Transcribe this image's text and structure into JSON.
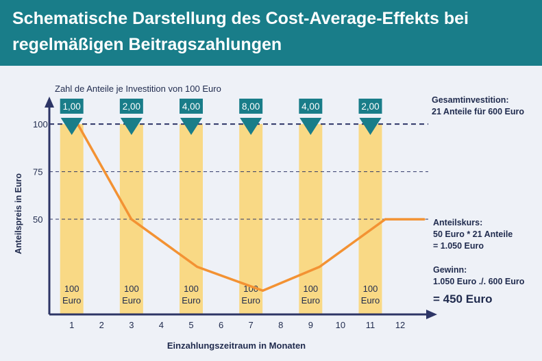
{
  "header": {
    "title_line1": "Schematische Darstellung des Cost-Average-Effekts bei",
    "title_line2": "regelmäßigen Beitragszahlungen"
  },
  "colors": {
    "header_bg": "#197d89",
    "marker": "#197d89",
    "bar": "#f9d985",
    "line": "#f39233",
    "axis": "#2d3566",
    "text": "#1f2a4d"
  },
  "chart_data": {
    "type": "line",
    "xlabel": "Einzahlungszeitraum in Monaten",
    "ylabel": "Anteilspreis in Euro",
    "x_ticks": [
      "1",
      "2",
      "3",
      "4",
      "5",
      "6",
      "7",
      "8",
      "9",
      "10",
      "11",
      "12"
    ],
    "y_ticks": [
      100,
      75,
      50
    ],
    "ylim": [
      0,
      113
    ],
    "xlim": [
      0.25,
      13.1
    ],
    "series": [
      {
        "points": [
          {
            "x": 1.2,
            "y": 100
          },
          {
            "x": 3.0,
            "y": 50
          },
          {
            "x": 5.2,
            "y": 25
          },
          {
            "x": 7.4,
            "y": 12.5
          },
          {
            "x": 9.3,
            "y": 25
          },
          {
            "x": 11.5,
            "y": 50
          },
          {
            "x": 12.8,
            "y": 50
          }
        ]
      }
    ],
    "investments": [
      {
        "month": 1,
        "units": "1,00",
        "label_top": "100",
        "label_bottom": "Euro"
      },
      {
        "month": 3,
        "units": "2,00",
        "label_top": "100",
        "label_bottom": "Euro"
      },
      {
        "month": 5,
        "units": "4,00",
        "label_top": "100",
        "label_bottom": "Euro"
      },
      {
        "month": 7,
        "units": "8,00",
        "label_top": "100",
        "label_bottom": "Euro"
      },
      {
        "month": 9,
        "units": "4,00",
        "label_top": "100",
        "label_bottom": "Euro"
      },
      {
        "month": 11,
        "units": "2,00",
        "label_top": "100",
        "label_bottom": "Euro"
      }
    ],
    "units_caption": "Zahl de Anteile je Investition von 100 Euro",
    "annotations": {
      "total_title": "Gesamtinvestition:",
      "total_line": "21 Anteile für 600 Euro",
      "price_title": "Anteilskurs:",
      "price_line1": "50 Euro * 21 Anteile",
      "price_line2": "= 1.050 Euro",
      "gain_title": "Gewinn:",
      "gain_line1": "1.050 Euro ./. 600 Euro",
      "gain_result": "= 450 Euro"
    }
  }
}
